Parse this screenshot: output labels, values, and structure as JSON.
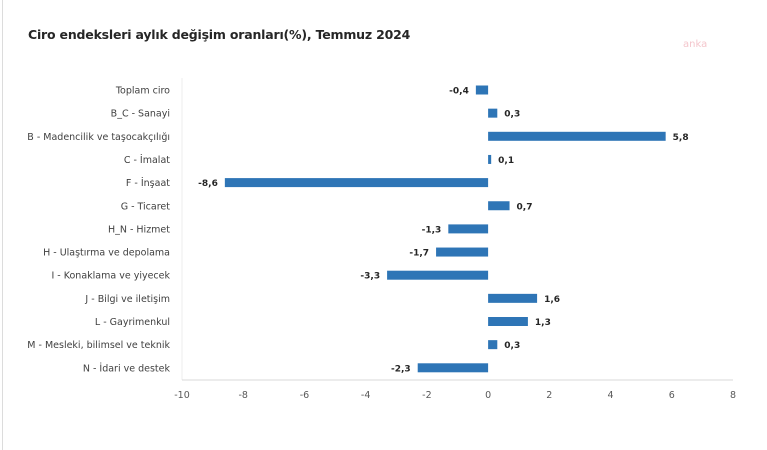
{
  "watermark": "anka",
  "chart_data": {
    "type": "bar",
    "orientation": "horizontal",
    "title": "Ciro endeksleri aylık değişim oranları(%), Temmuz 2024",
    "xlabel": "",
    "ylabel": "",
    "categories": [
      "Toplam ciro",
      "B_C - Sanayi",
      "B - Madencilik ve taşocakçılığı",
      "C - İmalat",
      "F - İnşaat",
      "G - Ticaret",
      "H_N - Hizmet",
      "H - Ulaştırma ve depolama",
      "I - Konaklama ve yiyecek",
      "J - Bilgi ve iletişim",
      "L - Gayrimenkul",
      "M - Mesleki, bilimsel ve teknik",
      "N - İdari ve destek"
    ],
    "values": [
      -0.4,
      0.3,
      5.8,
      0.1,
      -8.6,
      0.7,
      -1.3,
      -1.7,
      -3.3,
      1.6,
      1.3,
      0.3,
      -2.3
    ],
    "value_labels": [
      "-0,4",
      "0,3",
      "5,8",
      "0,1",
      "-8,6",
      "0,7",
      "-1,3",
      "-1,7",
      "-3,3",
      "1,6",
      "1,3",
      "0,3",
      "-2,3"
    ],
    "xlim": [
      -10,
      8
    ],
    "xticks": [
      -10,
      -8,
      -6,
      -4,
      -2,
      0,
      2,
      4,
      6,
      8
    ],
    "xtick_labels": [
      "-10",
      "-8",
      "-6",
      "-4",
      "-2",
      "0",
      "2",
      "4",
      "6",
      "8"
    ],
    "grid": false,
    "legend": "none",
    "bar_color": "#2e75b6"
  }
}
